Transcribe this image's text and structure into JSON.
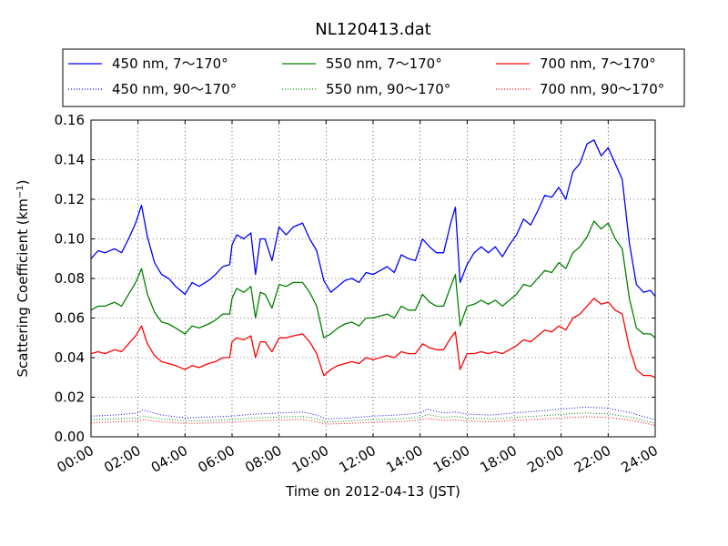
{
  "chart_data": {
    "type": "line",
    "title": "NL120413.dat",
    "xlabel": "Time on 2012-04-13 (JST)",
    "ylabel": "Scattering Coefficient (km",
    "ylabel_sup": "−1",
    "ylabel_close": ")",
    "xlim": [
      0,
      24
    ],
    "ylim": [
      0,
      0.16
    ],
    "grid": true,
    "legend_placement": "top",
    "x_tick_values": [
      0,
      2,
      4,
      6,
      8,
      10,
      12,
      14,
      16,
      18,
      20,
      22,
      24
    ],
    "x_tick_labels": [
      "00:00",
      "02:00",
      "04:00",
      "06:00",
      "08:00",
      "10:00",
      "12:00",
      "14:00",
      "16:00",
      "18:00",
      "20:00",
      "22:00",
      "24:00"
    ],
    "y_tick_values": [
      0,
      0.02,
      0.04,
      0.06,
      0.08,
      0.1,
      0.12,
      0.14,
      0.16
    ],
    "y_tick_labels": [
      "0.00",
      "0.02",
      "0.04",
      "0.06",
      "0.08",
      "0.10",
      "0.12",
      "0.14",
      "0.16"
    ],
    "series": [
      {
        "name": "450 nm, 7～170°",
        "color": "#0000ff",
        "style": "solid",
        "x": [
          0,
          0.3,
          0.6,
          1.0,
          1.3,
          1.6,
          1.9,
          2.15,
          2.4,
          2.7,
          3.0,
          3.3,
          3.6,
          4.0,
          4.3,
          4.6,
          5.0,
          5.3,
          5.6,
          5.9,
          6.0,
          6.2,
          6.5,
          6.8,
          7.0,
          7.2,
          7.4,
          7.7,
          8.0,
          8.3,
          8.6,
          9.0,
          9.3,
          9.6,
          9.9,
          10.2,
          10.5,
          10.8,
          11.1,
          11.4,
          11.7,
          12.0,
          12.3,
          12.6,
          12.9,
          13.2,
          13.5,
          13.8,
          14.1,
          14.4,
          14.7,
          15.0,
          15.3,
          15.5,
          15.7,
          16.0,
          16.3,
          16.6,
          16.9,
          17.2,
          17.5,
          17.8,
          18.1,
          18.4,
          18.7,
          19.0,
          19.3,
          19.6,
          19.9,
          20.2,
          20.5,
          20.8,
          21.1,
          21.4,
          21.7,
          22.0,
          22.3,
          22.6,
          22.9,
          23.2,
          23.5,
          23.8,
          24.0
        ],
        "y": [
          0.09,
          0.094,
          0.093,
          0.095,
          0.093,
          0.1,
          0.108,
          0.117,
          0.101,
          0.088,
          0.082,
          0.08,
          0.076,
          0.072,
          0.078,
          0.076,
          0.079,
          0.082,
          0.086,
          0.087,
          0.097,
          0.102,
          0.1,
          0.103,
          0.082,
          0.1,
          0.1,
          0.089,
          0.106,
          0.102,
          0.106,
          0.108,
          0.1,
          0.094,
          0.079,
          0.073,
          0.076,
          0.079,
          0.08,
          0.078,
          0.083,
          0.082,
          0.084,
          0.086,
          0.083,
          0.092,
          0.09,
          0.089,
          0.1,
          0.096,
          0.093,
          0.093,
          0.108,
          0.116,
          0.078,
          0.087,
          0.093,
          0.096,
          0.093,
          0.096,
          0.091,
          0.097,
          0.102,
          0.11,
          0.107,
          0.114,
          0.122,
          0.121,
          0.126,
          0.12,
          0.134,
          0.138,
          0.148,
          0.15,
          0.142,
          0.146,
          0.138,
          0.13,
          0.098,
          0.077,
          0.073,
          0.074,
          0.071
        ]
      },
      {
        "name": "550 nm, 7～170°",
        "color": "#008000",
        "style": "solid",
        "x": [
          0,
          0.3,
          0.6,
          1.0,
          1.3,
          1.6,
          1.9,
          2.15,
          2.4,
          2.7,
          3.0,
          3.3,
          3.6,
          4.0,
          4.3,
          4.6,
          5.0,
          5.3,
          5.6,
          5.9,
          6.0,
          6.2,
          6.5,
          6.8,
          7.0,
          7.2,
          7.4,
          7.7,
          8.0,
          8.3,
          8.6,
          9.0,
          9.3,
          9.6,
          9.9,
          10.2,
          10.5,
          10.8,
          11.1,
          11.4,
          11.7,
          12.0,
          12.3,
          12.6,
          12.9,
          13.2,
          13.5,
          13.8,
          14.1,
          14.4,
          14.7,
          15.0,
          15.3,
          15.5,
          15.7,
          16.0,
          16.3,
          16.6,
          16.9,
          17.2,
          17.5,
          17.8,
          18.1,
          18.4,
          18.7,
          19.0,
          19.3,
          19.6,
          19.9,
          20.2,
          20.5,
          20.8,
          21.1,
          21.4,
          21.7,
          22.0,
          22.3,
          22.6,
          22.9,
          23.2,
          23.5,
          23.8,
          24.0
        ],
        "y": [
          0.064,
          0.066,
          0.066,
          0.068,
          0.066,
          0.072,
          0.078,
          0.085,
          0.072,
          0.063,
          0.058,
          0.057,
          0.055,
          0.052,
          0.056,
          0.055,
          0.057,
          0.059,
          0.062,
          0.062,
          0.07,
          0.075,
          0.073,
          0.076,
          0.06,
          0.073,
          0.072,
          0.065,
          0.077,
          0.076,
          0.078,
          0.078,
          0.073,
          0.066,
          0.05,
          0.052,
          0.055,
          0.057,
          0.058,
          0.056,
          0.06,
          0.06,
          0.061,
          0.062,
          0.06,
          0.066,
          0.064,
          0.064,
          0.072,
          0.068,
          0.066,
          0.066,
          0.076,
          0.082,
          0.056,
          0.066,
          0.067,
          0.069,
          0.067,
          0.069,
          0.066,
          0.069,
          0.072,
          0.077,
          0.076,
          0.08,
          0.084,
          0.083,
          0.088,
          0.085,
          0.093,
          0.096,
          0.101,
          0.109,
          0.105,
          0.108,
          0.1,
          0.095,
          0.07,
          0.055,
          0.052,
          0.052,
          0.05
        ]
      },
      {
        "name": "700 nm, 7～170°",
        "color": "#ff0000",
        "style": "solid",
        "x": [
          0,
          0.3,
          0.6,
          1.0,
          1.3,
          1.6,
          1.9,
          2.15,
          2.4,
          2.7,
          3.0,
          3.3,
          3.6,
          4.0,
          4.3,
          4.6,
          5.0,
          5.3,
          5.6,
          5.9,
          6.0,
          6.2,
          6.5,
          6.8,
          7.0,
          7.2,
          7.4,
          7.7,
          8.0,
          8.3,
          8.6,
          9.0,
          9.3,
          9.6,
          9.9,
          10.2,
          10.5,
          10.8,
          11.1,
          11.4,
          11.7,
          12.0,
          12.3,
          12.6,
          12.9,
          13.2,
          13.5,
          13.8,
          14.1,
          14.4,
          14.7,
          15.0,
          15.3,
          15.5,
          15.7,
          16.0,
          16.3,
          16.6,
          16.9,
          17.2,
          17.5,
          17.8,
          18.1,
          18.4,
          18.7,
          19.0,
          19.3,
          19.6,
          19.9,
          20.2,
          20.5,
          20.8,
          21.1,
          21.4,
          21.7,
          22.0,
          22.3,
          22.6,
          22.9,
          23.2,
          23.5,
          23.8,
          24.0
        ],
        "y": [
          0.042,
          0.043,
          0.042,
          0.044,
          0.043,
          0.047,
          0.051,
          0.056,
          0.047,
          0.041,
          0.038,
          0.037,
          0.036,
          0.034,
          0.036,
          0.035,
          0.037,
          0.038,
          0.04,
          0.04,
          0.048,
          0.05,
          0.049,
          0.051,
          0.04,
          0.048,
          0.048,
          0.043,
          0.05,
          0.05,
          0.051,
          0.052,
          0.048,
          0.042,
          0.031,
          0.034,
          0.036,
          0.037,
          0.038,
          0.037,
          0.04,
          0.039,
          0.04,
          0.041,
          0.04,
          0.043,
          0.042,
          0.042,
          0.047,
          0.045,
          0.044,
          0.044,
          0.05,
          0.053,
          0.034,
          0.042,
          0.042,
          0.043,
          0.042,
          0.043,
          0.042,
          0.044,
          0.046,
          0.049,
          0.048,
          0.051,
          0.054,
          0.053,
          0.056,
          0.054,
          0.06,
          0.062,
          0.066,
          0.07,
          0.067,
          0.068,
          0.064,
          0.062,
          0.045,
          0.034,
          0.031,
          0.031,
          0.03
        ]
      },
      {
        "name": "450 nm, 90～170°",
        "color": "#0000ff",
        "style": "dotted",
        "x": [
          0,
          1,
          2,
          2.2,
          3,
          4,
          5,
          6,
          7,
          8,
          9,
          9.6,
          10,
          11,
          12,
          13,
          14,
          14.3,
          15,
          15.5,
          16,
          17,
          18,
          19,
          20,
          21,
          22,
          23,
          24
        ],
        "y": [
          0.0105,
          0.011,
          0.012,
          0.0135,
          0.011,
          0.0095,
          0.01,
          0.0105,
          0.0115,
          0.012,
          0.0125,
          0.011,
          0.009,
          0.0095,
          0.0105,
          0.011,
          0.012,
          0.014,
          0.012,
          0.0125,
          0.0115,
          0.011,
          0.012,
          0.013,
          0.014,
          0.015,
          0.0145,
          0.012,
          0.0085
        ]
      },
      {
        "name": "550 nm, 90～170°",
        "color": "#008000",
        "style": "dotted",
        "x": [
          0,
          1,
          2,
          2.2,
          3,
          4,
          5,
          6,
          7,
          8,
          9,
          9.6,
          10,
          11,
          12,
          13,
          14,
          14.3,
          15,
          15.5,
          16,
          17,
          18,
          19,
          20,
          21,
          22,
          23,
          24
        ],
        "y": [
          0.0085,
          0.009,
          0.0095,
          0.0105,
          0.009,
          0.008,
          0.0082,
          0.0088,
          0.0095,
          0.01,
          0.0103,
          0.009,
          0.0075,
          0.008,
          0.0087,
          0.009,
          0.0098,
          0.0112,
          0.0098,
          0.0103,
          0.0095,
          0.009,
          0.0098,
          0.0105,
          0.0113,
          0.012,
          0.0116,
          0.0098,
          0.0068
        ]
      },
      {
        "name": "700 nm, 90～170°",
        "color": "#ff0000",
        "style": "dotted",
        "x": [
          0,
          1,
          2,
          2.2,
          3,
          4,
          5,
          6,
          7,
          8,
          9,
          9.6,
          10,
          11,
          12,
          13,
          14,
          14.3,
          15,
          15.5,
          16,
          17,
          18,
          19,
          20,
          21,
          22,
          23,
          24
        ],
        "y": [
          0.007,
          0.0075,
          0.008,
          0.0088,
          0.0075,
          0.0068,
          0.007,
          0.0074,
          0.008,
          0.0084,
          0.0087,
          0.0076,
          0.0064,
          0.0068,
          0.0073,
          0.0076,
          0.0083,
          0.0094,
          0.0083,
          0.0087,
          0.008,
          0.0076,
          0.0083,
          0.0088,
          0.0095,
          0.0101,
          0.0098,
          0.0083,
          0.0058
        ]
      }
    ]
  }
}
